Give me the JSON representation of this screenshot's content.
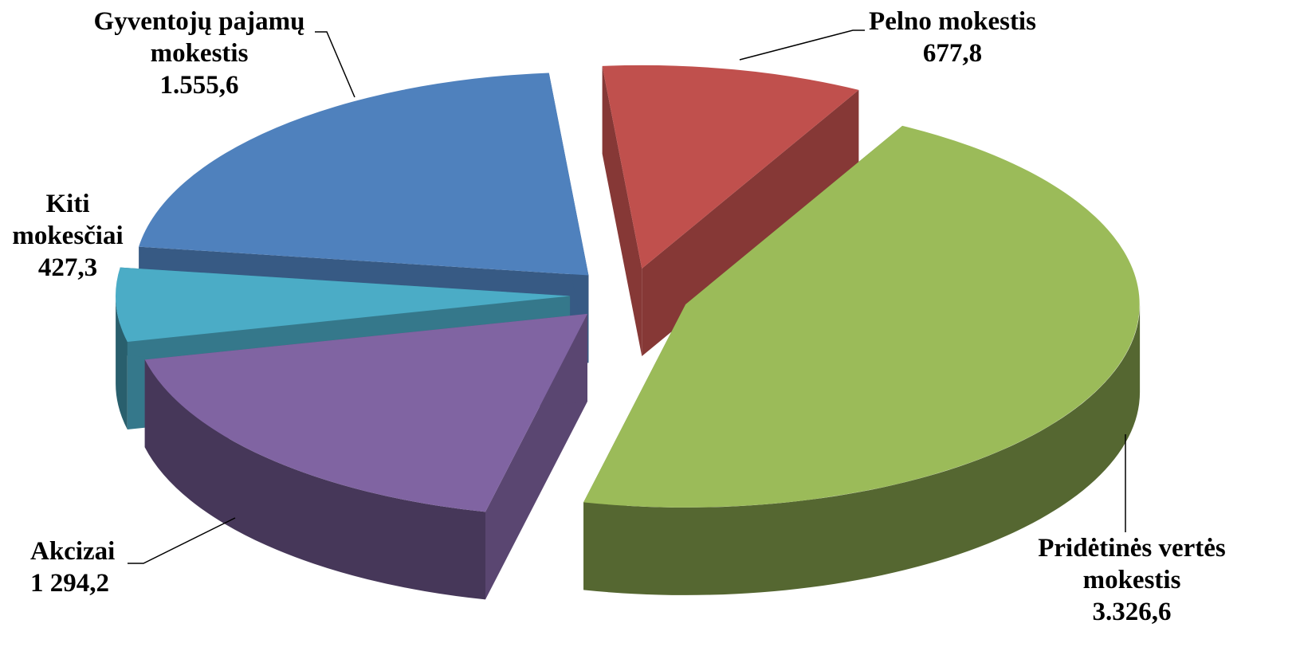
{
  "chart_data": {
    "type": "pie3d",
    "categories": [
      "Pelno mokestis",
      "Pridėtinės vertės mokestis",
      "Akcizai",
      "Kiti mokesčiai",
      "Gyventojų pajamų mokestis"
    ],
    "values": [
      677.8,
      3326.6,
      1294.2,
      427.3,
      1555.6
    ],
    "value_labels": [
      "677,8",
      "3.326,6",
      "1 294,2",
      "427,3",
      "1.555,6"
    ],
    "colors": [
      "#c0504d",
      "#9bbb59",
      "#8064a2",
      "#4bacc6",
      "#4f81bd"
    ]
  }
}
